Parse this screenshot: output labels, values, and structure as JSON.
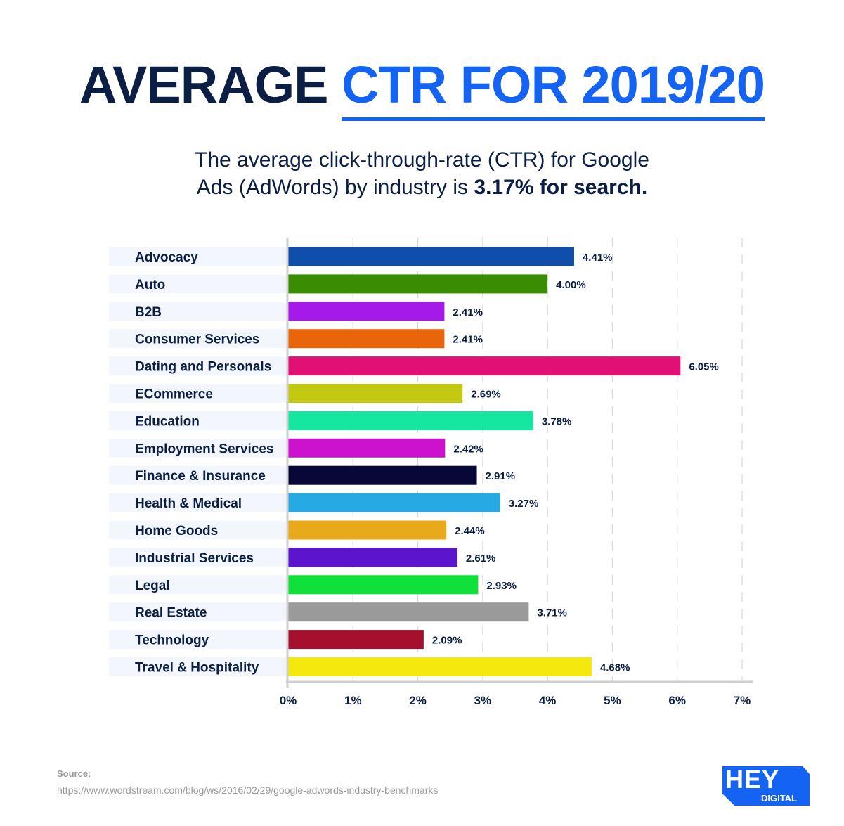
{
  "header": {
    "title_part1": "AVERAGE",
    "title_part2": "CTR FOR 2019/20",
    "subtitle_line1": "The average click-through-rate (CTR) for Google",
    "subtitle_line2": "Ads (AdWords) by industry is",
    "subtitle_bold": "3.17% for search."
  },
  "chart_data": {
    "type": "bar",
    "orientation": "horizontal",
    "categories": [
      "Advocacy",
      "Auto",
      "B2B",
      "Consumer Services",
      "Dating and Personals",
      "ECommerce",
      "Education",
      "Employment Services",
      "Finance & Insurance",
      "Health & Medical",
      "Home Goods",
      "Industrial Services",
      "Legal",
      "Real Estate",
      "Technology",
      "Travel & Hospitality"
    ],
    "values": [
      4.41,
      4.0,
      2.41,
      2.41,
      6.05,
      2.69,
      3.78,
      2.42,
      2.91,
      3.27,
      2.44,
      2.61,
      2.93,
      3.71,
      2.09,
      4.68
    ],
    "data_labels": [
      "4.41%",
      "4.00%",
      "2.41%",
      "2.41%",
      "6.05%",
      "2.69%",
      "3.78%",
      "2.42%",
      "2.91%",
      "3.27%",
      "2.44%",
      "2.61%",
      "2.93%",
      "3.71%",
      "2.09%",
      "4.68%"
    ],
    "colors": [
      "#0f4fab",
      "#3a8c02",
      "#a51ae8",
      "#e8650c",
      "#e01075",
      "#c3c912",
      "#15e6a0",
      "#cc12cc",
      "#070738",
      "#27aae3",
      "#e8a91b",
      "#5c14cc",
      "#0fe03a",
      "#9a9a9a",
      "#a5102e",
      "#f5e80f"
    ],
    "xlim": [
      0,
      7
    ],
    "xticks": [
      "0%",
      "1%",
      "2%",
      "3%",
      "4%",
      "5%",
      "6%",
      "7%"
    ],
    "grid": true
  },
  "footer": {
    "source_label": "Source:",
    "source_url": "https://www.wordstream.com/blog/ws/2016/02/29/google-adwords-industry-benchmarks",
    "logo_text": "HEY",
    "logo_subtext": "DIGITAL"
  }
}
